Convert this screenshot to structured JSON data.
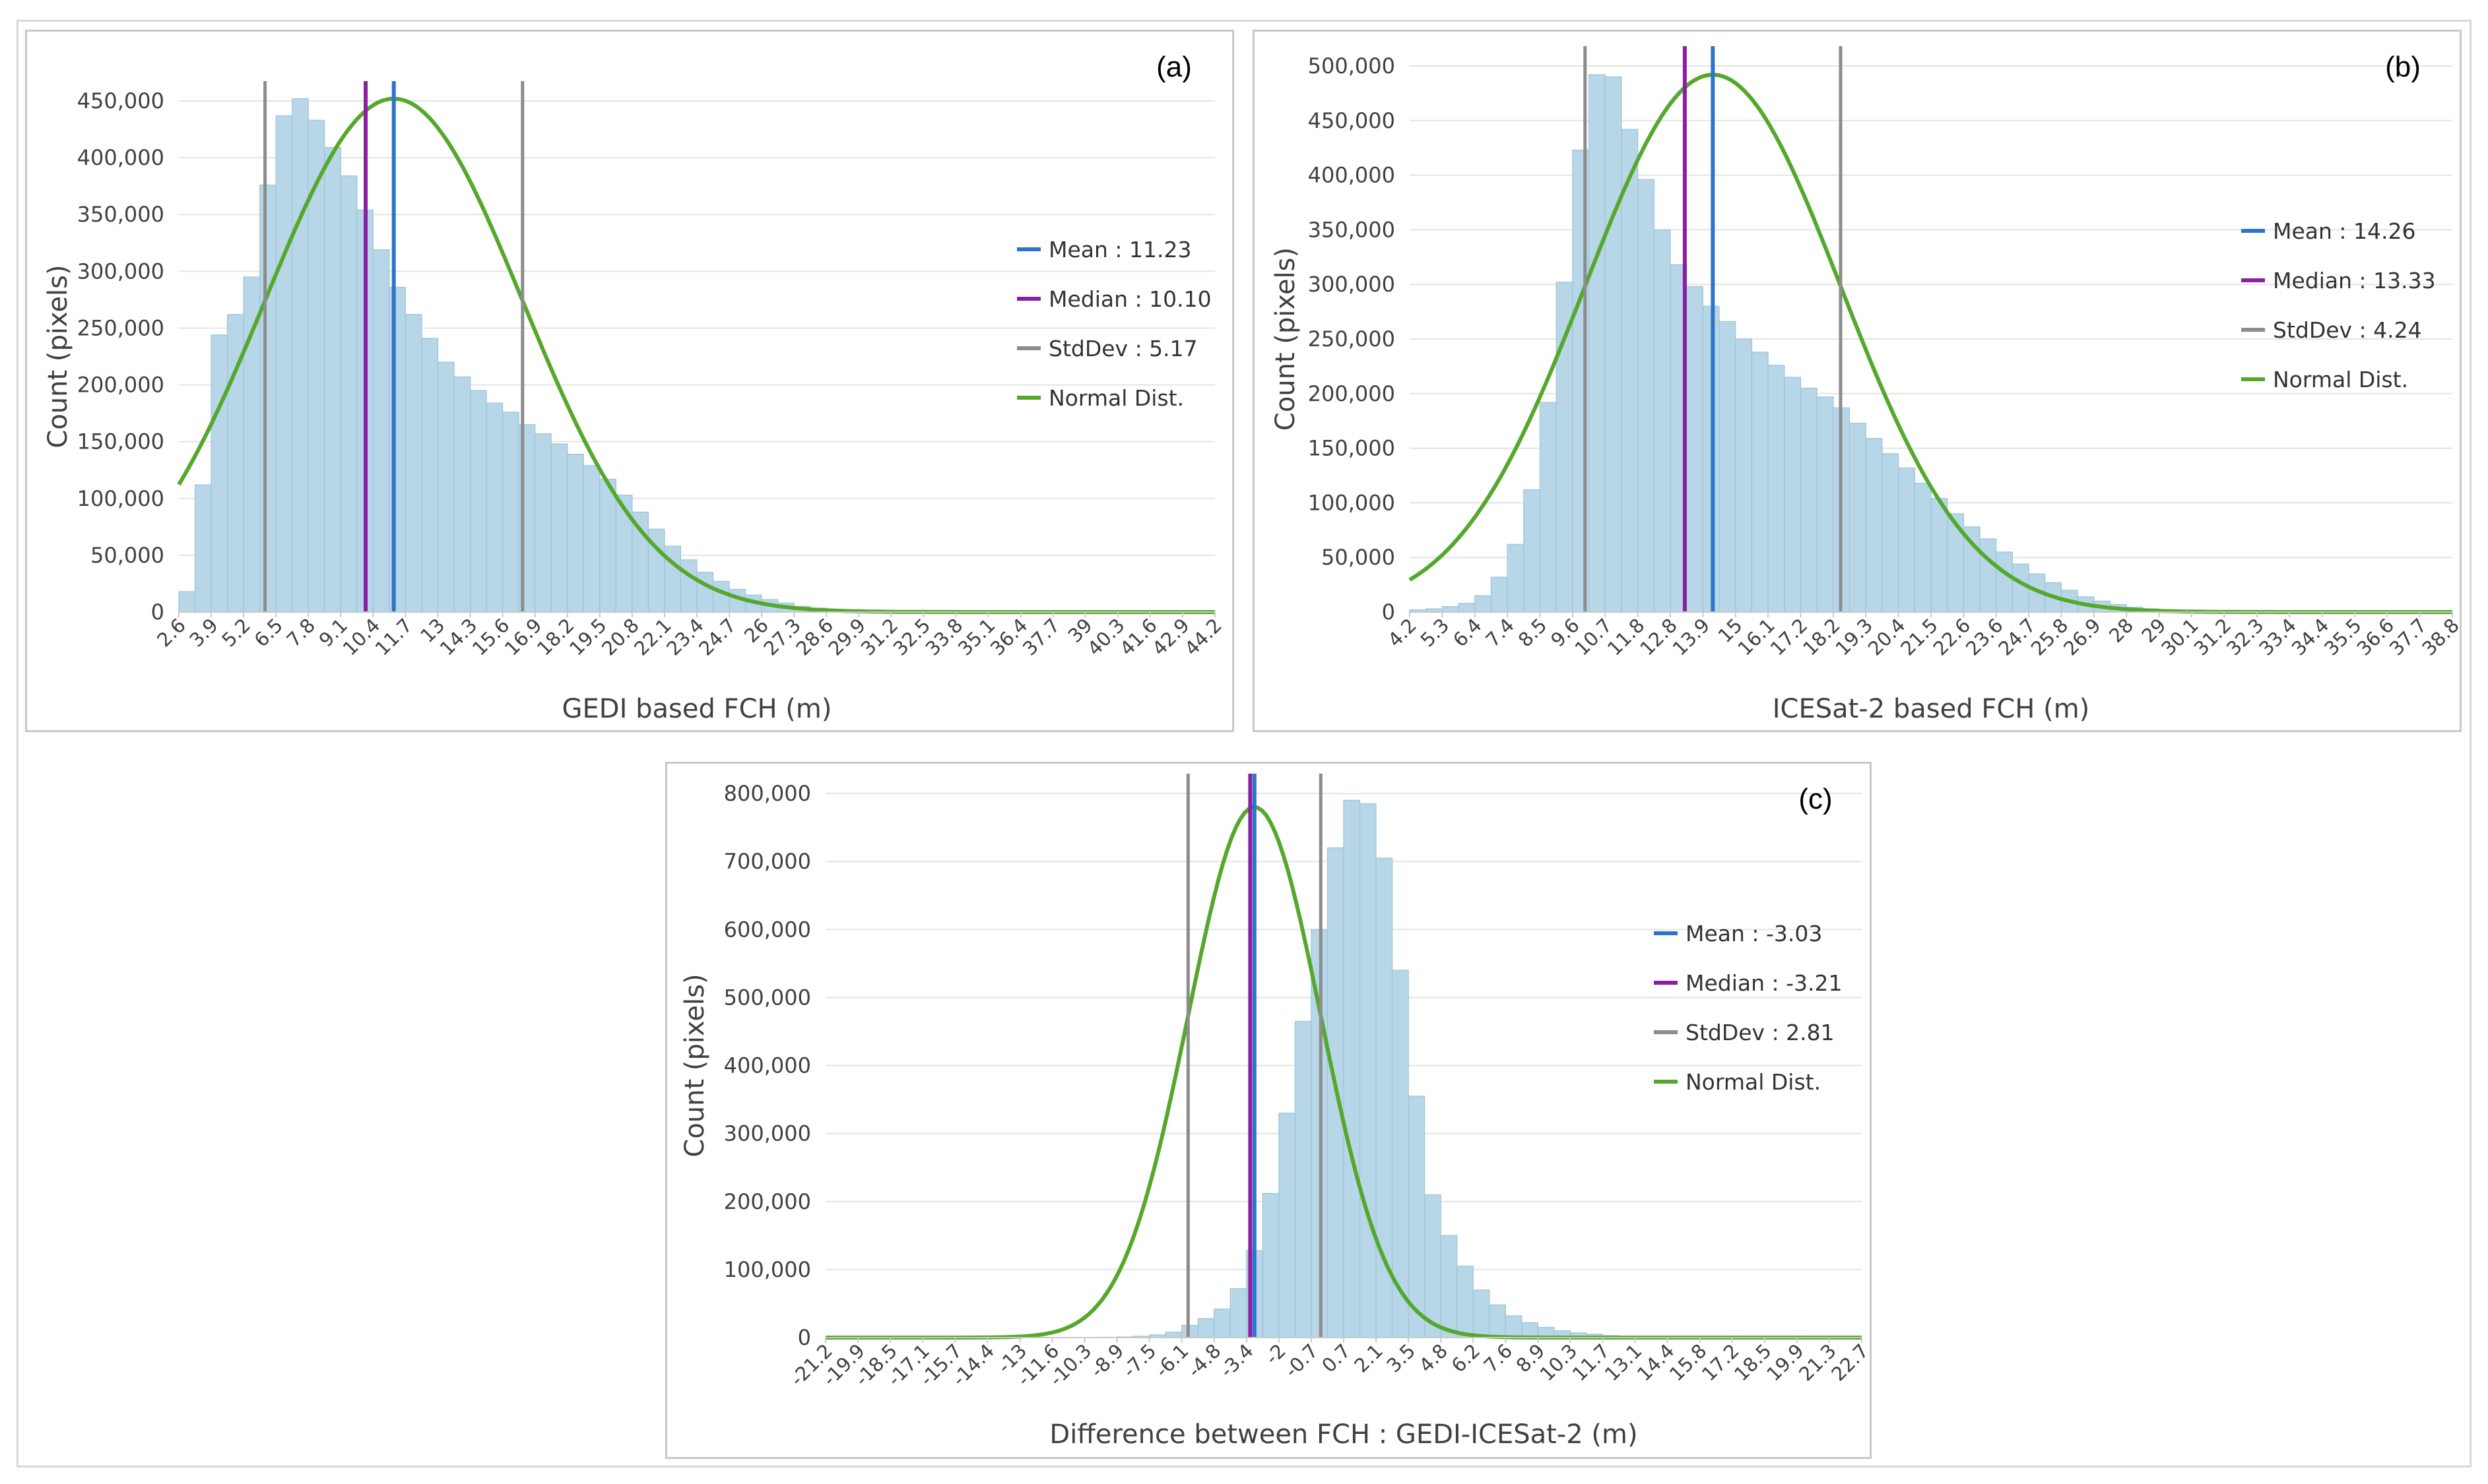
{
  "chart_data": [
    {
      "type": "bar",
      "panel_label": "(a)",
      "xlabel": "GEDI based FCH (m)",
      "ylabel": "Count (pixels)",
      "ylim": [
        0,
        450000
      ],
      "y_ticks": [
        "0",
        "50,000",
        "100,000",
        "150,000",
        "200,000",
        "250,000",
        "300,000",
        "350,000",
        "400,000",
        "450,000"
      ],
      "x_tick_labels": [
        "2.6",
        "3.9",
        "5.2",
        "6.5",
        "7.8",
        "9.1",
        "10.4",
        "11.7",
        "13",
        "14.3",
        "15.6",
        "16.9",
        "18.2",
        "19.5",
        "20.8",
        "22.1",
        "23.4",
        "24.7",
        "26",
        "27.3",
        "28.6",
        "29.9",
        "31.2",
        "32.5",
        "33.8",
        "35.1",
        "36.4",
        "37.7",
        "39",
        "40.3",
        "41.6",
        "42.9",
        "44.2"
      ],
      "xlim": [
        2.6,
        44.2
      ],
      "bin_width": 0.65,
      "values": [
        18000,
        112000,
        244000,
        262000,
        295000,
        376000,
        437000,
        452000,
        433000,
        409000,
        384000,
        354000,
        319000,
        286000,
        262000,
        241000,
        220000,
        207000,
        195000,
        184000,
        176000,
        165000,
        157000,
        148000,
        139000,
        129000,
        117000,
        103000,
        88000,
        73000,
        58000,
        46000,
        35000,
        27000,
        20000,
        15000,
        11000,
        8000,
        5000,
        3500,
        2500,
        1800,
        1300,
        900,
        700,
        500,
        400,
        300,
        200,
        150,
        100,
        80,
        60,
        50,
        40,
        30,
        20,
        20,
        15,
        10,
        10,
        5,
        5,
        5
      ],
      "stats": {
        "mean": 11.23,
        "median": 10.1,
        "std": 5.17
      },
      "curve_peak": 452000,
      "legend": [
        {
          "label": "Mean : 11.23",
          "color": "#2e75c9"
        },
        {
          "label": "Median : 10.10",
          "color": "#8a1fa0"
        },
        {
          "label": "StdDev : 5.17",
          "color": "#8c8c8c"
        },
        {
          "label": "Normal Dist.",
          "color": "#55a82b"
        }
      ],
      "grid": true,
      "legend_position": "right"
    },
    {
      "type": "bar",
      "panel_label": "(b)",
      "xlabel": "ICESat-2 based FCH (m)",
      "ylabel": "Count (pixels)",
      "ylim": [
        0,
        500000
      ],
      "y_ticks": [
        "0",
        "50,000",
        "100,000",
        "150,000",
        "200,000",
        "250,000",
        "300,000",
        "350,000",
        "400,000",
        "450,000",
        "500,000"
      ],
      "x_tick_labels": [
        "4.2",
        "5.3",
        "6.4",
        "7.4",
        "8.5",
        "9.6",
        "10.7",
        "11.8",
        "12.8",
        "13.9",
        "15",
        "16.1",
        "17.2",
        "18.2",
        "19.3",
        "20.4",
        "21.5",
        "22.6",
        "23.6",
        "24.7",
        "25.8",
        "26.9",
        "28",
        "29",
        "30.1",
        "31.2",
        "32.3",
        "33.4",
        "34.4",
        "35.5",
        "36.6",
        "37.7",
        "38.8"
      ],
      "xlim": [
        4.2,
        38.8
      ],
      "bin_width": 0.54,
      "values": [
        2000,
        3000,
        5000,
        8000,
        15000,
        32000,
        62000,
        112000,
        192000,
        302000,
        423000,
        492000,
        490000,
        442000,
        396000,
        350000,
        318000,
        298000,
        280000,
        266000,
        250000,
        238000,
        226000,
        215000,
        205000,
        197000,
        187000,
        173000,
        159000,
        145000,
        132000,
        118000,
        104000,
        90000,
        78000,
        67000,
        55000,
        44000,
        35000,
        27000,
        20000,
        14000,
        10000,
        7000,
        4500,
        3000,
        2000,
        1400,
        1000,
        700,
        500,
        350,
        250,
        180,
        120,
        90,
        60,
        40,
        30,
        20,
        15,
        10,
        8,
        5
      ],
      "stats": {
        "mean": 14.26,
        "median": 13.33,
        "std": 4.24
      },
      "curve_peak": 492000,
      "legend": [
        {
          "label": "Mean : 14.26",
          "color": "#2e75c9"
        },
        {
          "label": "Median : 13.33",
          "color": "#8a1fa0"
        },
        {
          "label": "StdDev : 4.24",
          "color": "#8c8c8c"
        },
        {
          "label": "Normal Dist.",
          "color": "#55a82b"
        }
      ],
      "grid": true,
      "legend_position": "right"
    },
    {
      "type": "bar",
      "panel_label": "(c)",
      "xlabel": "Difference between FCH : GEDI-ICESat-2 (m)",
      "ylabel": "Count (pixels)",
      "ylim": [
        0,
        800000
      ],
      "y_ticks": [
        "0",
        "100,000",
        "200,000",
        "300,000",
        "400,000",
        "500,000",
        "600,000",
        "700,000",
        "800,000"
      ],
      "x_tick_labels": [
        "-21.2",
        "-19.9",
        "-18.5",
        "-17.1",
        "-15.7",
        "-14.4",
        "-13",
        "-11.6",
        "-10.3",
        "-8.9",
        "-7.5",
        "-6.1",
        "-4.8",
        "-3.4",
        "-2",
        "-0.7",
        "0.7",
        "2.1",
        "3.5",
        "4.8",
        "6.2",
        "7.6",
        "8.9",
        "10.3",
        "11.7",
        "13.1",
        "14.4",
        "15.8",
        "17.2",
        "18.5",
        "19.9",
        "21.3",
        "22.7"
      ],
      "xlim": [
        -21.2,
        22.7
      ],
      "bin_width": 0.686,
      "values": [
        0,
        0,
        0,
        0,
        0,
        0,
        0,
        0,
        0,
        0,
        0,
        0,
        0,
        0,
        0,
        0,
        0,
        500,
        1000,
        2000,
        4000,
        8000,
        18000,
        28000,
        42000,
        72000,
        128000,
        212000,
        330000,
        465000,
        600000,
        720000,
        790000,
        785000,
        705000,
        540000,
        355000,
        210000,
        150000,
        105000,
        70000,
        48000,
        32000,
        22000,
        15000,
        10000,
        7000,
        5000,
        3000,
        2000,
        1200,
        800,
        500,
        300,
        200,
        100,
        0,
        0,
        0,
        0,
        0,
        0,
        0,
        0
      ],
      "stats": {
        "mean": -3.03,
        "median": -3.21,
        "std": 2.81
      },
      "curve_peak": 780000,
      "legend": [
        {
          "label": "Mean : -3.03",
          "color": "#2e75c9"
        },
        {
          "label": "Median : -3.21",
          "color": "#8a1fa0"
        },
        {
          "label": "StdDev : 2.81",
          "color": "#8c8c8c"
        },
        {
          "label": "Normal Dist.",
          "color": "#55a82b"
        }
      ],
      "grid": true,
      "legend_position": "right"
    }
  ],
  "colors": {
    "bar_fill": "#b7d7e8",
    "bar_stroke": "#9cc3d9",
    "grid": "#e4e4e4",
    "mean": "#2e75c9",
    "median": "#8a1fa0",
    "stddev": "#8c8c8c",
    "normal": "#55a82b"
  }
}
